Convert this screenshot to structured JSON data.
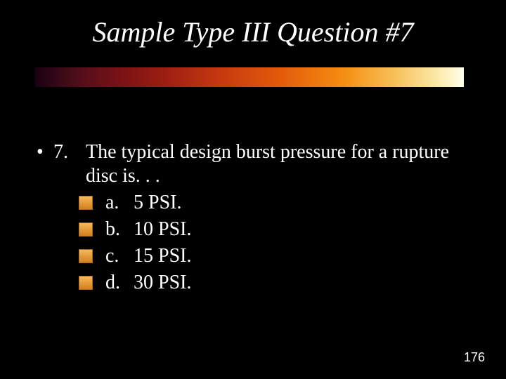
{
  "title": "Sample Type III Question #7",
  "question": {
    "bullet": "•",
    "number": "7.",
    "text": "The typical design burst pressure for a rupture disc is. . ."
  },
  "options": {
    "a": {
      "letter": "a.",
      "text": "5 PSI."
    },
    "b": {
      "letter": "b.",
      "text": "10 PSI."
    },
    "c": {
      "letter": "c.",
      "text": "15 PSI."
    },
    "d": {
      "letter": "d.",
      "text": "30 PSI."
    }
  },
  "page_number": "176",
  "style": {
    "background_color": "#000000",
    "text_color": "#ffffff",
    "title_font": "Times New Roman Italic",
    "title_fontsize": 40,
    "body_fontsize": 28,
    "checkbox_fill": "#e89a2c",
    "checkbox_border": "#a86a1e",
    "gradient_colors": [
      "#1a0010",
      "#5a0e1a",
      "#c23710",
      "#f58e12",
      "#ffffee"
    ],
    "slide_width": 720,
    "slide_height": 540
  }
}
